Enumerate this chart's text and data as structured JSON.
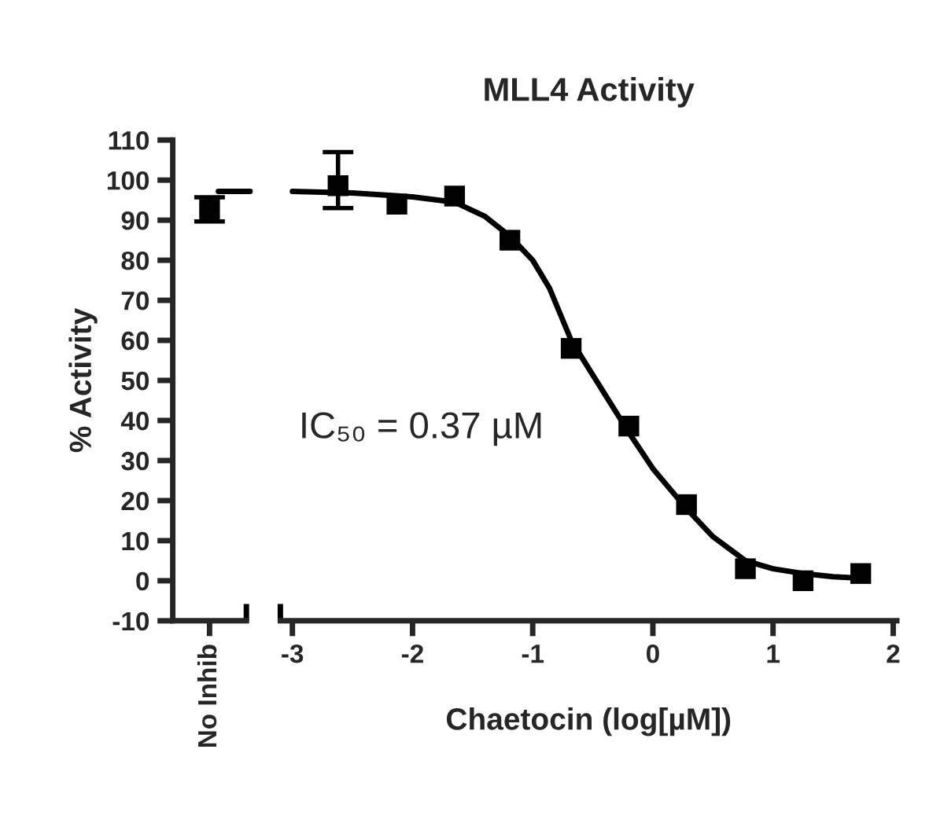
{
  "chart_data": [
    {
      "type": "scatter",
      "ylabel": "% Activity",
      "categories": [
        "No Inhib"
      ],
      "ylim": [
        -10,
        110
      ],
      "yticks": [
        -10,
        0,
        10,
        20,
        30,
        40,
        50,
        60,
        70,
        80,
        90,
        100,
        110
      ],
      "marker": "square",
      "series": [
        {
          "color": "#000000",
          "x": [
            "No Inhib"
          ],
          "values": [
            92.7
          ],
          "errors": [
            3
          ]
        }
      ],
      "ref_lines": [
        {
          "axis": "y",
          "value": 97.2,
          "color": "#000000"
        }
      ]
    },
    {
      "type": "scatter",
      "title": "MLL4 Activity",
      "xlabel": "Chaetocin (log[µM])",
      "xlim": [
        -3.1,
        2.03
      ],
      "xticks": [
        -3,
        -2,
        -1,
        0,
        1,
        2
      ],
      "ylim": [
        -10,
        110
      ],
      "tick_labels": "x",
      "marker": "square",
      "annotations": [
        "IC₅₀ = 0.37 µM"
      ],
      "series": [
        {
          "color": "#000000",
          "x": [
            -2.62,
            -2.13,
            -1.65,
            -1.19,
            -0.68,
            -0.2,
            0.28,
            0.77,
            1.25,
            1.73
          ],
          "values": [
            98.6,
            94,
            96,
            85,
            58,
            38.6,
            19,
            3,
            0,
            1.8
          ],
          "errors": [
            [
              93,
              107
            ],
            null,
            null,
            null,
            null,
            null,
            null,
            null,
            null,
            null
          ]
        },
        {
          "type": "line",
          "marker": "none",
          "color": "#000000",
          "x": [
            -3,
            -2.5,
            -2,
            -1.65,
            -1.4,
            -1.19,
            -1,
            -0.86,
            -0.68,
            -0.43,
            -0.2,
            0,
            0.28,
            0.5,
            0.77,
            1,
            1.25,
            1.5,
            1.75
          ],
          "values": [
            97.2,
            96.8,
            95.8,
            94.5,
            91,
            86,
            80,
            73,
            60,
            48,
            37,
            28,
            18,
            11,
            5,
            3,
            1.8,
            1,
            0.6
          ]
        }
      ]
    }
  ]
}
